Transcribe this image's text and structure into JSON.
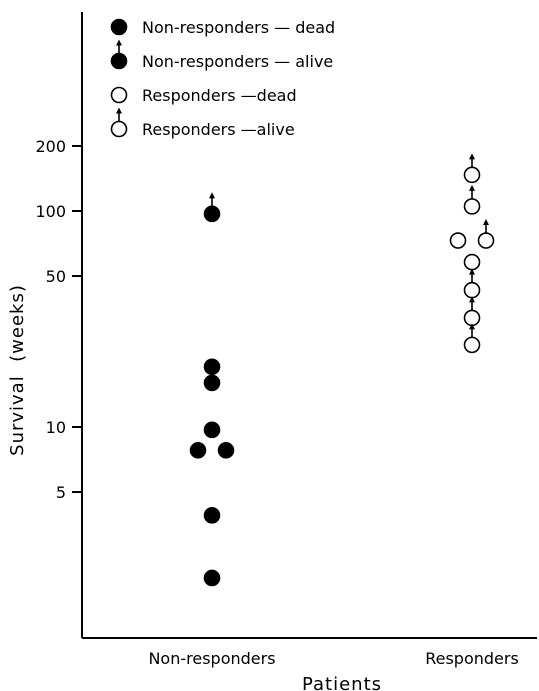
{
  "chart_data": {
    "type": "scatter",
    "title": "",
    "xlabel": "Patients",
    "ylabel": "Survival  (weeks)",
    "yscale": "log",
    "ylim": [
      1.6,
      500
    ],
    "yticks": [
      5,
      10,
      50,
      100,
      200
    ],
    "categories": [
      "Non-responders",
      "Responders"
    ],
    "grid": false,
    "legend_position": "top-left",
    "legend": [
      {
        "label": "Non-responders — dead",
        "filled": true,
        "alive": false
      },
      {
        "label": "Non-responders — alive",
        "filled": true,
        "alive": true
      },
      {
        "label": "Responders —dead",
        "filled": false,
        "alive": false
      },
      {
        "label": "Responders —alive",
        "filled": false,
        "alive": true
      }
    ],
    "series": [
      {
        "name": "Non-responders — dead",
        "category": "Non-responders",
        "filled": true,
        "alive": false,
        "points": [
          {
            "y": 19,
            "offset": 0
          },
          {
            "y": 16,
            "offset": 0
          },
          {
            "y": 9.7,
            "offset": 0
          },
          {
            "y": 7.8,
            "offset": -1
          },
          {
            "y": 7.8,
            "offset": 1
          },
          {
            "y": 3.9,
            "offset": 0
          },
          {
            "y": 2.0,
            "offset": 0
          }
        ]
      },
      {
        "name": "Non-responders — alive",
        "category": "Non-responders",
        "filled": true,
        "alive": true,
        "points": [
          {
            "y": 97,
            "offset": 0
          }
        ]
      },
      {
        "name": "Responders —dead",
        "category": "Responders",
        "filled": false,
        "alive": false,
        "points": [
          {
            "y": 73,
            "offset": -1
          },
          {
            "y": 58,
            "offset": 0
          }
        ]
      },
      {
        "name": "Responders —alive",
        "category": "Responders",
        "filled": false,
        "alive": true,
        "points": [
          {
            "y": 147,
            "offset": 0
          },
          {
            "y": 105,
            "offset": 0
          },
          {
            "y": 73,
            "offset": 1
          },
          {
            "y": 43,
            "offset": 0
          },
          {
            "y": 32,
            "offset": 0
          },
          {
            "y": 24,
            "offset": 0
          }
        ]
      }
    ]
  }
}
